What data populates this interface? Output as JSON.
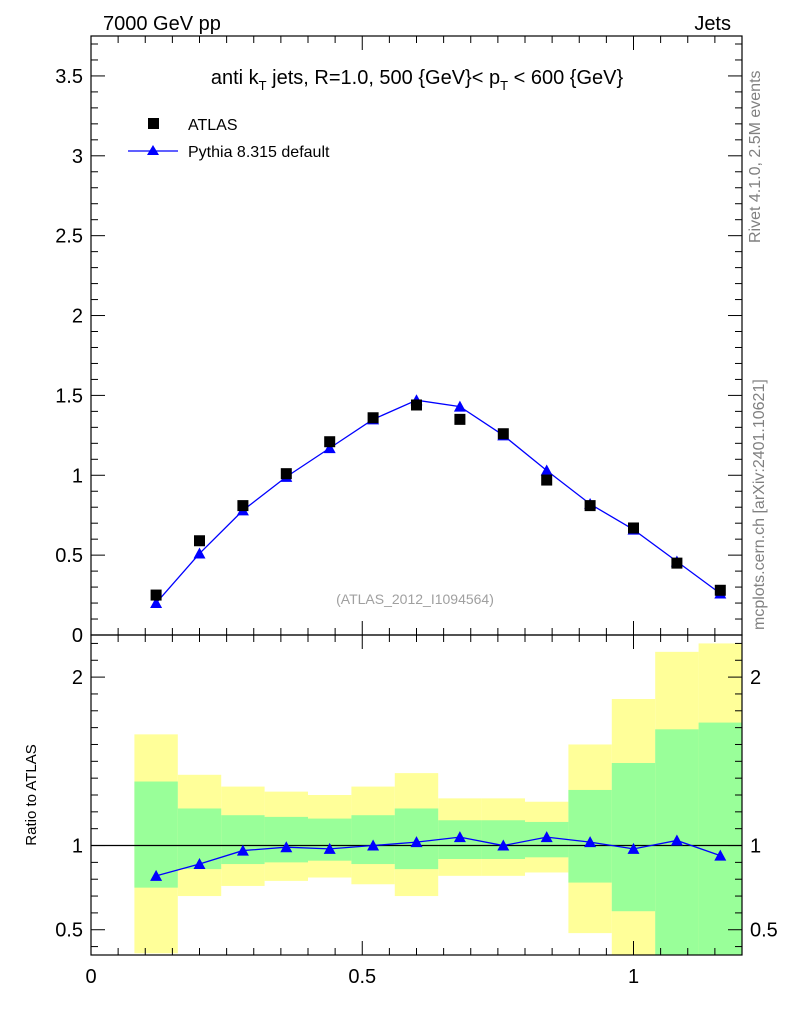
{
  "header": {
    "left": "7000 GeV pp",
    "right": "Jets"
  },
  "side_labels": {
    "rivet": "Rivet 4.1.0,  2.5M events",
    "mcplots": "mcplots.cern.ch [arXiv:2401.10621]"
  },
  "reference_label": "(ATLAS_2012_I1094564)",
  "colors": {
    "data": "#000000",
    "mc": "#0000ff",
    "band_inner": "#99ff99",
    "band_outer": "#ffff99",
    "axis": "#000000"
  },
  "chart_data": [
    {
      "id": "main",
      "type": "scatter",
      "title": "anti k_T jets, R=1.0,  500 {GeV}< p_T < 600 {GeV}",
      "title_parts": {
        "t1": "anti k",
        "t1_sub": "T",
        "t2": " jets, R=1.0,  500 {GeV}< p",
        "t2_sub": "T",
        "t3": " < 600 {GeV}"
      },
      "xlim": [
        0,
        1.2
      ],
      "ylim": [
        0,
        3.75
      ],
      "yticks": [
        0,
        0.5,
        1,
        1.5,
        2,
        2.5,
        3,
        3.5
      ],
      "ytick_labels": [
        "0",
        "0.5",
        "1",
        "1.5",
        "2",
        "2.5",
        "3",
        "3.5"
      ],
      "legend": [
        {
          "name": "ATLAS",
          "marker": "square"
        },
        {
          "name": "Pythia 8.315 default",
          "marker": "triangle"
        }
      ],
      "series": [
        {
          "name": "ATLAS",
          "x": [
            0.12,
            0.2,
            0.28,
            0.36,
            0.44,
            0.52,
            0.6,
            0.68,
            0.76,
            0.84,
            0.92,
            1.0,
            1.08,
            1.16
          ],
          "y": [
            0.25,
            0.59,
            0.81,
            1.01,
            1.21,
            1.36,
            1.44,
            1.35,
            1.26,
            0.97,
            0.81,
            0.67,
            0.45,
            0.28
          ]
        },
        {
          "name": "Pythia 8.315 default",
          "x": [
            0.12,
            0.2,
            0.28,
            0.36,
            0.44,
            0.52,
            0.6,
            0.68,
            0.76,
            0.84,
            0.92,
            1.0,
            1.08,
            1.16
          ],
          "y": [
            0.2,
            0.51,
            0.78,
            0.99,
            1.17,
            1.35,
            1.47,
            1.43,
            1.25,
            1.03,
            0.82,
            0.66,
            0.46,
            0.26
          ]
        }
      ]
    },
    {
      "id": "ratio",
      "type": "line",
      "ylabel": "Ratio to ATLAS",
      "xlim": [
        0,
        1.2
      ],
      "ylim": [
        0.35,
        2.25
      ],
      "xticks": [
        0,
        0.5,
        1
      ],
      "xtick_labels": [
        "0",
        "0.5",
        "1"
      ],
      "yticks": [
        0.5,
        1,
        2
      ],
      "ytick_labels": [
        "0.5",
        "1",
        "2"
      ],
      "reference_line": 1,
      "bins": [
        {
          "lo": 0.08,
          "hi": 0.16,
          "inner": [
            0.75,
            1.38
          ],
          "outer": [
            0.36,
            1.66
          ]
        },
        {
          "lo": 0.16,
          "hi": 0.24,
          "inner": [
            0.86,
            1.22
          ],
          "outer": [
            0.7,
            1.42
          ]
        },
        {
          "lo": 0.24,
          "hi": 0.32,
          "inner": [
            0.89,
            1.18
          ],
          "outer": [
            0.76,
            1.35
          ]
        },
        {
          "lo": 0.32,
          "hi": 0.4,
          "inner": [
            0.9,
            1.17
          ],
          "outer": [
            0.79,
            1.32
          ]
        },
        {
          "lo": 0.4,
          "hi": 0.48,
          "inner": [
            0.91,
            1.16
          ],
          "outer": [
            0.81,
            1.3
          ]
        },
        {
          "lo": 0.48,
          "hi": 0.56,
          "inner": [
            0.89,
            1.18
          ],
          "outer": [
            0.77,
            1.35
          ]
        },
        {
          "lo": 0.56,
          "hi": 0.64,
          "inner": [
            0.86,
            1.22
          ],
          "outer": [
            0.7,
            1.43
          ]
        },
        {
          "lo": 0.64,
          "hi": 0.72,
          "inner": [
            0.92,
            1.15
          ],
          "outer": [
            0.82,
            1.28
          ]
        },
        {
          "lo": 0.72,
          "hi": 0.8,
          "inner": [
            0.92,
            1.15
          ],
          "outer": [
            0.82,
            1.28
          ]
        },
        {
          "lo": 0.8,
          "hi": 0.88,
          "inner": [
            0.93,
            1.14
          ],
          "outer": [
            0.84,
            1.26
          ]
        },
        {
          "lo": 0.88,
          "hi": 0.96,
          "inner": [
            0.78,
            1.33
          ],
          "outer": [
            0.48,
            1.6
          ]
        },
        {
          "lo": 0.96,
          "hi": 1.04,
          "inner": [
            0.61,
            1.49
          ],
          "outer": [
            0.35,
            1.87
          ]
        },
        {
          "lo": 1.04,
          "hi": 1.12,
          "inner": [
            0.35,
            1.69
          ],
          "outer": [
            0.35,
            2.15
          ]
        },
        {
          "lo": 1.12,
          "hi": 1.2,
          "inner": [
            0.35,
            1.73
          ],
          "outer": [
            0.35,
            2.2
          ]
        }
      ],
      "series": [
        {
          "name": "Pythia 8.315 default",
          "x": [
            0.12,
            0.2,
            0.28,
            0.36,
            0.44,
            0.52,
            0.6,
            0.68,
            0.76,
            0.84,
            0.92,
            1.0,
            1.08,
            1.16
          ],
          "y": [
            0.82,
            0.89,
            0.97,
            0.99,
            0.98,
            1.0,
            1.02,
            1.05,
            1.0,
            1.05,
            1.02,
            0.98,
            1.03,
            0.94
          ]
        }
      ]
    }
  ]
}
